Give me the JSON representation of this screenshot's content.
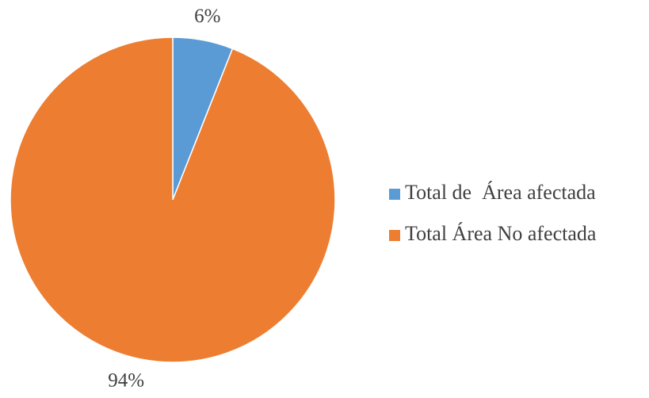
{
  "chart_data": {
    "type": "pie",
    "categories": [
      "Total de  Área afectada",
      "Total Área No afectada"
    ],
    "values": [
      6,
      94
    ],
    "value_labels": [
      "6%",
      "94%"
    ],
    "colors": [
      "#5b9bd5",
      "#ed7d31"
    ],
    "legend": "right"
  }
}
